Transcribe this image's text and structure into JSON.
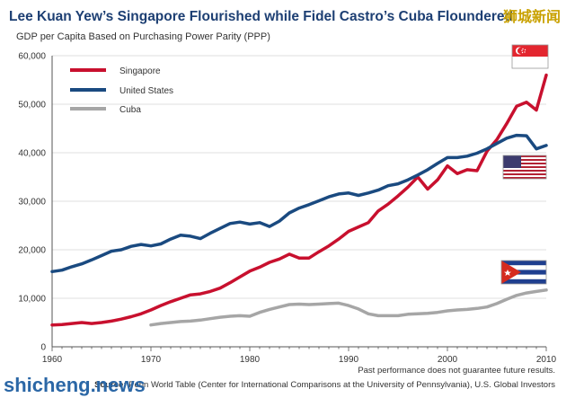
{
  "chart_data": {
    "type": "line",
    "title": "Lee Kuan Yew’s Singapore Flourished while Fidel Castro’s Cuba Floundered",
    "subtitle": "GDP per Capita Based on Purchasing Power Parity (PPP)",
    "xlabel": "",
    "ylabel": "",
    "xlim": [
      1960,
      2010
    ],
    "ylim": [
      0,
      60000
    ],
    "x_ticks": [
      "1960",
      "1970",
      "1980",
      "1990",
      "2000",
      "2010"
    ],
    "y_ticks": [
      "0",
      "10,000",
      "20,000",
      "30,000",
      "40,000",
      "50,000",
      "60,000"
    ],
    "grid": "horizontal",
    "legend_position": "top-left",
    "series": [
      {
        "name": "Singapore",
        "color": "#c8102e",
        "x": [
          1960,
          1961,
          1962,
          1963,
          1964,
          1965,
          1966,
          1967,
          1968,
          1969,
          1970,
          1971,
          1972,
          1973,
          1974,
          1975,
          1976,
          1977,
          1978,
          1979,
          1980,
          1981,
          1982,
          1983,
          1984,
          1985,
          1986,
          1987,
          1988,
          1989,
          1990,
          1991,
          1992,
          1993,
          1994,
          1995,
          1996,
          1997,
          1998,
          1999,
          2000,
          2001,
          2002,
          2003,
          2004,
          2005,
          2006,
          2007,
          2008,
          2009,
          2010
        ],
        "y": [
          4500,
          4600,
          4800,
          5000,
          4800,
          5000,
          5300,
          5700,
          6200,
          6800,
          7600,
          8500,
          9300,
          10000,
          10700,
          10900,
          11400,
          12100,
          13200,
          14400,
          15600,
          16400,
          17400,
          18100,
          19100,
          18300,
          18300,
          19600,
          20800,
          22200,
          23800,
          24700,
          25600,
          28000,
          29400,
          31100,
          32900,
          35000,
          32500,
          34400,
          37300,
          35700,
          36500,
          36300,
          40300,
          42700,
          46000,
          49600,
          50400,
          48800,
          56000
        ]
      },
      {
        "name": "United States",
        "color": "#1a4a80",
        "x": [
          1960,
          1961,
          1962,
          1963,
          1964,
          1965,
          1966,
          1967,
          1968,
          1969,
          1970,
          1971,
          1972,
          1973,
          1974,
          1975,
          1976,
          1977,
          1978,
          1979,
          1980,
          1981,
          1982,
          1983,
          1984,
          1985,
          1986,
          1987,
          1988,
          1989,
          1990,
          1991,
          1992,
          1993,
          1994,
          1995,
          1996,
          1997,
          1998,
          1999,
          2000,
          2001,
          2002,
          2003,
          2004,
          2005,
          2006,
          2007,
          2008,
          2009,
          2010
        ],
        "y": [
          15500,
          15800,
          16500,
          17100,
          17900,
          18800,
          19700,
          20000,
          20700,
          21100,
          20800,
          21200,
          22200,
          23000,
          22800,
          22300,
          23400,
          24400,
          25400,
          25700,
          25300,
          25600,
          24800,
          25900,
          27600,
          28600,
          29300,
          30100,
          30900,
          31500,
          31700,
          31200,
          31700,
          32300,
          33200,
          33600,
          34400,
          35400,
          36500,
          37800,
          39000,
          39000,
          39300,
          39900,
          40800,
          41900,
          43000,
          43600,
          43500,
          40800,
          41500
        ]
      },
      {
        "name": "Cuba",
        "color": "#a6a6a6",
        "x": [
          1970,
          1971,
          1972,
          1973,
          1974,
          1975,
          1976,
          1977,
          1978,
          1979,
          1980,
          1981,
          1982,
          1983,
          1984,
          1985,
          1986,
          1987,
          1988,
          1989,
          1990,
          1991,
          1992,
          1993,
          1994,
          1995,
          1996,
          1997,
          1998,
          1999,
          2000,
          2001,
          2002,
          2003,
          2004,
          2005,
          2006,
          2007,
          2008,
          2009,
          2010
        ],
        "y": [
          4500,
          4800,
          5000,
          5200,
          5300,
          5500,
          5800,
          6100,
          6300,
          6400,
          6300,
          7100,
          7700,
          8200,
          8700,
          8800,
          8700,
          8800,
          8900,
          9000,
          8500,
          7800,
          6800,
          6400,
          6400,
          6400,
          6700,
          6800,
          6900,
          7100,
          7400,
          7600,
          7700,
          7900,
          8200,
          8900,
          9800,
          10600,
          11100,
          11400,
          11700
        ]
      }
    ]
  },
  "footer": {
    "disclaimer": "Past performance does not guarantee future results.",
    "source_label": "Source:",
    "source_text": "Penn World Table (Center for International Comparisons at the University of Pennsylvania), U.S. Global Investors"
  },
  "watermark": {
    "chinese": "狮城新闻",
    "site": "shicheng.news"
  },
  "flags": [
    {
      "series": "Singapore",
      "icon": "singapore-flag-icon"
    },
    {
      "series": "United States",
      "icon": "usa-flag-icon"
    },
    {
      "series": "Cuba",
      "icon": "cuba-flag-icon"
    }
  ]
}
